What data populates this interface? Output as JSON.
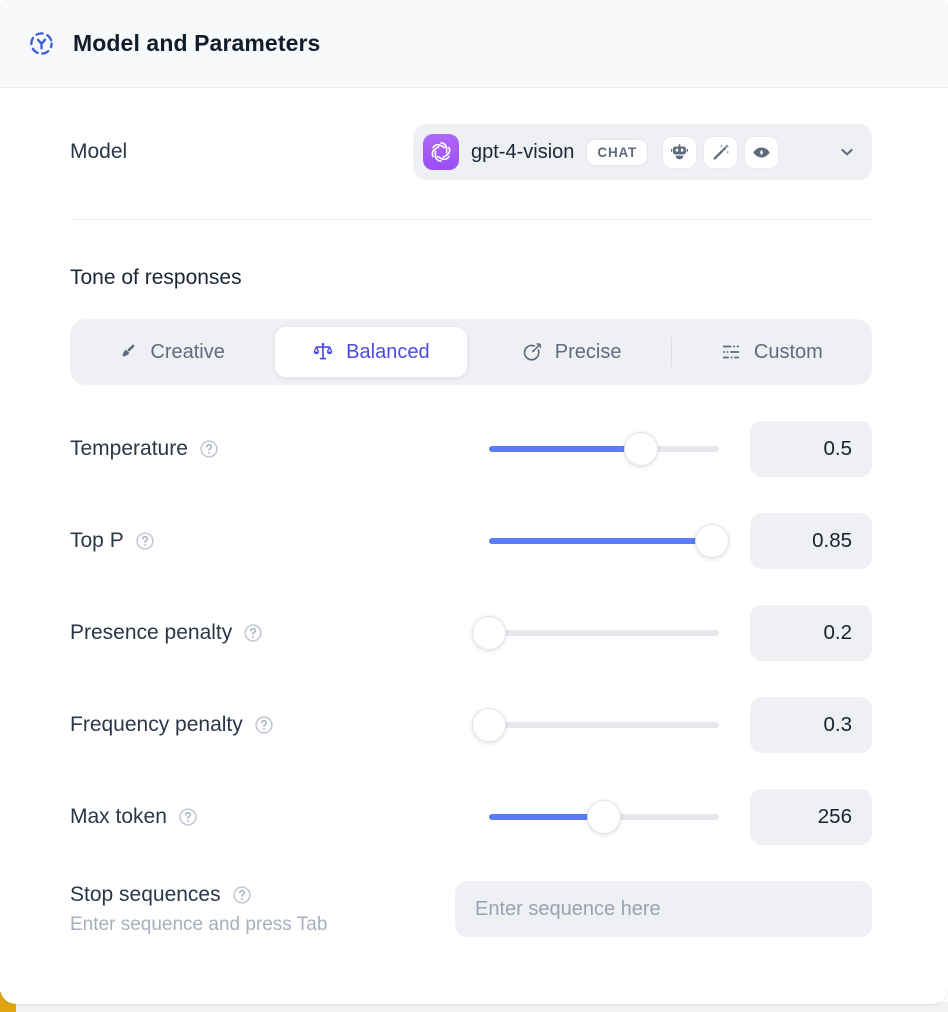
{
  "header": {
    "title": "Model and Parameters"
  },
  "model": {
    "label": "Model",
    "selected_model": "gpt-4-vision",
    "type_badge": "CHAT",
    "capability_icons": [
      "bot-icon",
      "magic-wand-icon",
      "vision-eye-icon"
    ]
  },
  "tone": {
    "heading": "Tone of responses",
    "options": [
      {
        "label": "Creative",
        "icon": "paintbrush-icon",
        "selected": false
      },
      {
        "label": "Balanced",
        "icon": "scales-icon",
        "selected": true
      },
      {
        "label": "Precise",
        "icon": "target-dart-icon",
        "selected": false
      },
      {
        "label": "Custom",
        "icon": "sliders-icon",
        "selected": false
      }
    ]
  },
  "parameters": [
    {
      "label": "Temperature",
      "value": "0.5",
      "percent": 66
    },
    {
      "label": "Top P",
      "value": "0.85",
      "percent": 97
    },
    {
      "label": "Presence penalty",
      "value": "0.2",
      "percent": 0
    },
    {
      "label": "Frequency penalty",
      "value": "0.3",
      "percent": 0
    },
    {
      "label": "Max token",
      "value": "256",
      "percent": 50
    }
  ],
  "stop_sequences": {
    "label": "Stop sequences",
    "hint": "Enter sequence and press Tab",
    "placeholder": "Enter sequence here"
  },
  "colors": {
    "slider_blue": "#5b7cfa",
    "active_indigo": "#4a4ae2",
    "header_icon_blue": "#3c5fd7",
    "openai_purple": "#9a4ef5",
    "corner_yellow": "#dfa512"
  }
}
